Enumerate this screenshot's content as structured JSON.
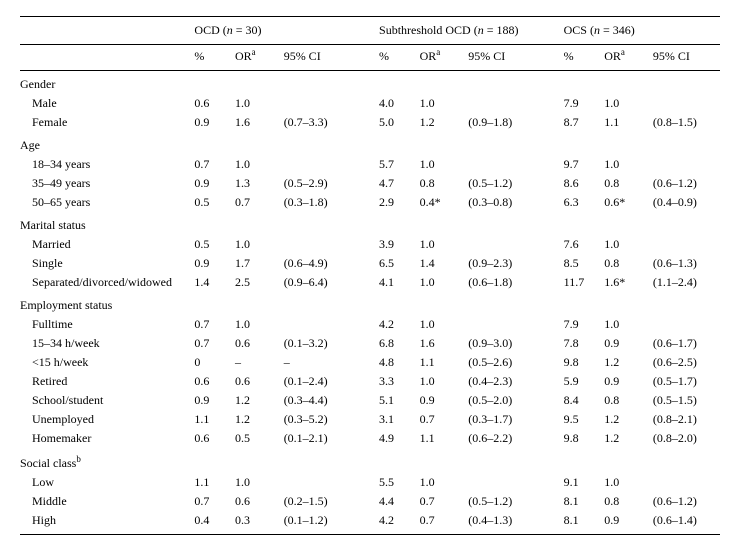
{
  "table": {
    "groups": [
      {
        "key": "g1",
        "title_prefix": "OCD (",
        "n_label": "n",
        "eq": " = ",
        "n": "30",
        "title_suffix": ")"
      },
      {
        "key": "g2",
        "title_prefix": "Subthreshold OCD (",
        "n_label": "n",
        "eq": " = ",
        "n": "188",
        "title_suffix": ")"
      },
      {
        "key": "g3",
        "title_prefix": "OCS (",
        "n_label": "n",
        "eq": " = ",
        "n": "346",
        "title_suffix": ")"
      }
    ],
    "subheaders": {
      "pct": "%",
      "or_pre": "OR",
      "or_sup": "a",
      "ci": "95% CI"
    },
    "footnote_sup": {
      "social_b": "b"
    },
    "sections": [
      {
        "label": "Gender",
        "rows": [
          {
            "label": "Male",
            "g1": {
              "pct": "0.6",
              "or": "1.0",
              "ci": ""
            },
            "g2": {
              "pct": "4.0",
              "or": "1.0",
              "ci": ""
            },
            "g3": {
              "pct": "7.9",
              "or": "1.0",
              "ci": ""
            }
          },
          {
            "label": "Female",
            "g1": {
              "pct": "0.9",
              "or": "1.6",
              "ci": "(0.7–3.3)"
            },
            "g2": {
              "pct": "5.0",
              "or": "1.2",
              "ci": "(0.9–1.8)"
            },
            "g3": {
              "pct": "8.7",
              "or": "1.1",
              "ci": "(0.8–1.5)"
            }
          }
        ]
      },
      {
        "label": "Age",
        "rows": [
          {
            "label": "18–34 years",
            "g1": {
              "pct": "0.7",
              "or": "1.0",
              "ci": ""
            },
            "g2": {
              "pct": "5.7",
              "or": "1.0",
              "ci": ""
            },
            "g3": {
              "pct": "9.7",
              "or": "1.0",
              "ci": ""
            }
          },
          {
            "label": "35–49 years",
            "g1": {
              "pct": "0.9",
              "or": "1.3",
              "ci": "(0.5–2.9)"
            },
            "g2": {
              "pct": "4.7",
              "or": "0.8",
              "ci": "(0.5–1.2)"
            },
            "g3": {
              "pct": "8.6",
              "or": "0.8",
              "ci": "(0.6–1.2)"
            }
          },
          {
            "label": "50–65 years",
            "g1": {
              "pct": "0.5",
              "or": "0.7",
              "ci": "(0.3–1.8)"
            },
            "g2": {
              "pct": "2.9",
              "or": "0.4*",
              "ci": "(0.3–0.8)"
            },
            "g3": {
              "pct": "6.3",
              "or": "0.6*",
              "ci": "(0.4–0.9)"
            }
          }
        ]
      },
      {
        "label": "Marital status",
        "rows": [
          {
            "label": "Married",
            "g1": {
              "pct": "0.5",
              "or": "1.0",
              "ci": ""
            },
            "g2": {
              "pct": "3.9",
              "or": "1.0",
              "ci": ""
            },
            "g3": {
              "pct": "7.6",
              "or": "1.0",
              "ci": ""
            }
          },
          {
            "label": "Single",
            "g1": {
              "pct": "0.9",
              "or": "1.7",
              "ci": "(0.6–4.9)"
            },
            "g2": {
              "pct": "6.5",
              "or": "1.4",
              "ci": "(0.9–2.3)"
            },
            "g3": {
              "pct": "8.5",
              "or": "0.8",
              "ci": "(0.6–1.3)"
            }
          },
          {
            "label": "Separated/divorced/widowed",
            "g1": {
              "pct": "1.4",
              "or": "2.5",
              "ci": "(0.9–6.4)"
            },
            "g2": {
              "pct": "4.1",
              "or": "1.0",
              "ci": "(0.6–1.8)"
            },
            "g3": {
              "pct": "11.7",
              "or": "1.6*",
              "ci": "(1.1–2.4)"
            }
          }
        ]
      },
      {
        "label": "Employment status",
        "rows": [
          {
            "label": "Fulltime",
            "g1": {
              "pct": "0.7",
              "or": "1.0",
              "ci": ""
            },
            "g2": {
              "pct": "4.2",
              "or": "1.0",
              "ci": ""
            },
            "g3": {
              "pct": "7.9",
              "or": "1.0",
              "ci": ""
            }
          },
          {
            "label": "15–34 h/week",
            "g1": {
              "pct": "0.7",
              "or": "0.6",
              "ci": "(0.1–3.2)"
            },
            "g2": {
              "pct": "6.8",
              "or": "1.6",
              "ci": "(0.9–3.0)"
            },
            "g3": {
              "pct": "7.8",
              "or": "0.9",
              "ci": "(0.6–1.7)"
            }
          },
          {
            "label": "<15 h/week",
            "g1": {
              "pct": "0",
              "or": "–",
              "ci": "–"
            },
            "g2": {
              "pct": "4.8",
              "or": "1.1",
              "ci": "(0.5–2.6)"
            },
            "g3": {
              "pct": "9.8",
              "or": "1.2",
              "ci": "(0.6–2.5)"
            }
          },
          {
            "label": "Retired",
            "g1": {
              "pct": "0.6",
              "or": "0.6",
              "ci": "(0.1–2.4)"
            },
            "g2": {
              "pct": "3.3",
              "or": "1.0",
              "ci": "(0.4–2.3)"
            },
            "g3": {
              "pct": "5.9",
              "or": "0.9",
              "ci": "(0.5–1.7)"
            }
          },
          {
            "label": "School/student",
            "g1": {
              "pct": "0.9",
              "or": "1.2",
              "ci": "(0.3–4.4)"
            },
            "g2": {
              "pct": "5.1",
              "or": "0.9",
              "ci": "(0.5–2.0)"
            },
            "g3": {
              "pct": "8.4",
              "or": "0.8",
              "ci": "(0.5–1.5)"
            }
          },
          {
            "label": "Unemployed",
            "g1": {
              "pct": "1.1",
              "or": "1.2",
              "ci": "(0.3–5.2)"
            },
            "g2": {
              "pct": "3.1",
              "or": "0.7",
              "ci": "(0.3–1.7)"
            },
            "g3": {
              "pct": "9.5",
              "or": "1.2",
              "ci": "(0.8–2.1)"
            }
          },
          {
            "label": "Homemaker",
            "g1": {
              "pct": "0.6",
              "or": "0.5",
              "ci": "(0.1–2.1)"
            },
            "g2": {
              "pct": "4.9",
              "or": "1.1",
              "ci": "(0.6–2.2)"
            },
            "g3": {
              "pct": "9.8",
              "or": "1.2",
              "ci": "(0.8–2.0)"
            }
          }
        ]
      },
      {
        "label": "Social class",
        "sup": "b",
        "rows": [
          {
            "label": "Low",
            "g1": {
              "pct": "1.1",
              "or": "1.0",
              "ci": ""
            },
            "g2": {
              "pct": "5.5",
              "or": "1.0",
              "ci": ""
            },
            "g3": {
              "pct": "9.1",
              "or": "1.0",
              "ci": ""
            }
          },
          {
            "label": "Middle",
            "g1": {
              "pct": "0.7",
              "or": "0.6",
              "ci": "(0.2–1.5)"
            },
            "g2": {
              "pct": "4.4",
              "or": "0.7",
              "ci": "(0.5–1.2)"
            },
            "g3": {
              "pct": "8.1",
              "or": "0.8",
              "ci": "(0.6–1.2)"
            }
          },
          {
            "label": "High",
            "g1": {
              "pct": "0.4",
              "or": "0.3",
              "ci": "(0.1–1.2)"
            },
            "g2": {
              "pct": "4.2",
              "or": "0.7",
              "ci": "(0.4–1.3)"
            },
            "g3": {
              "pct": "8.1",
              "or": "0.9",
              "ci": "(0.6–1.4)"
            }
          }
        ]
      }
    ]
  },
  "style": {
    "font_family": "Times New Roman",
    "font_size_pt": 9,
    "text_color": "#000000",
    "background": "#ffffff",
    "rule_color": "#000000"
  }
}
